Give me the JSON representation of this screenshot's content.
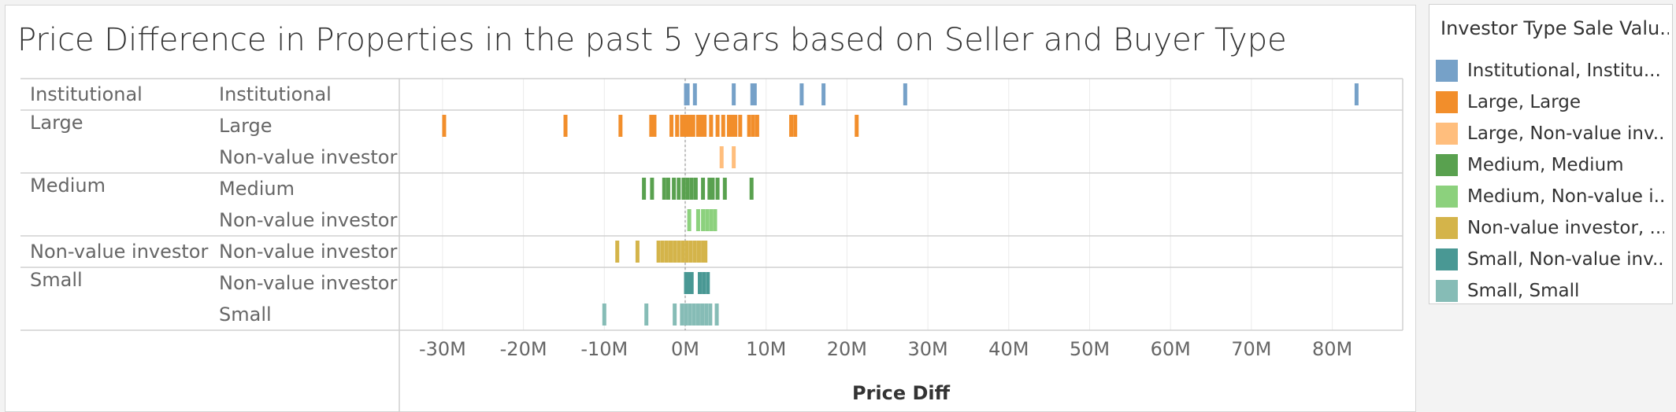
{
  "title": "Price Difference in Properties in the past 5 years based on Seller and Buyer Type",
  "legend": {
    "title": "Investor Type Sale Valu...",
    "items": [
      {
        "label": "Institutional, Institu...",
        "color": "#76a1c8"
      },
      {
        "label": "Large, Large",
        "color": "#f28e2b"
      },
      {
        "label": "Large, Non-value inv...",
        "color": "#ffbe7d"
      },
      {
        "label": "Medium, Medium",
        "color": "#59a14f"
      },
      {
        "label": "Medium, Non-value i...",
        "color": "#8cd17d"
      },
      {
        "label": "Non-value investor, ...",
        "color": "#d4b44a"
      },
      {
        "label": "Small, Non-value inv...",
        "color": "#499894"
      },
      {
        "label": "Small, Small",
        "color": "#86bcb6"
      }
    ]
  },
  "chart_data": {
    "type": "strip",
    "title": "Price Difference in Properties in the past 5 years based on Seller and Buyer Type",
    "xlabel": "Price Diff",
    "x_unit": "M",
    "xlim": [
      -33,
      88
    ],
    "x_ticks": [
      "-30M",
      "-20M",
      "-10M",
      "0M",
      "10M",
      "20M",
      "30M",
      "40M",
      "50M",
      "60M",
      "70M",
      "80M"
    ],
    "x_tick_values": [
      -30,
      -20,
      -10,
      0,
      10,
      20,
      30,
      40,
      50,
      60,
      70,
      80
    ],
    "grid": "vertical",
    "zero_line": true,
    "legend_position": "right",
    "groups": [
      {
        "seller": "Institutional",
        "buyers": [
          "Institutional"
        ]
      },
      {
        "seller": "Large",
        "buyers": [
          "Large",
          "Non-value investor"
        ]
      },
      {
        "seller": "Medium",
        "buyers": [
          "Medium",
          "Non-value investor"
        ]
      },
      {
        "seller": "Non-value investor",
        "buyers": [
          "Non-value investor"
        ]
      },
      {
        "seller": "Small",
        "buyers": [
          "Non-value investor",
          "Small"
        ]
      }
    ],
    "series": [
      {
        "name": "Institutional, Institutional",
        "seller": "Institutional",
        "buyer": "Institutional",
        "color": "#76a1c8",
        "values": [
          0.1,
          0.3,
          1.2,
          6.0,
          8.3,
          8.6,
          14.4,
          17.1,
          27.2,
          83.0
        ]
      },
      {
        "name": "Large, Large",
        "seller": "Large",
        "buyer": "Large",
        "color": "#f28e2b",
        "values": [
          -29.8,
          -14.8,
          -8.0,
          -4.2,
          -3.8,
          -1.7,
          -1.0,
          -0.4,
          -0.2,
          0.2,
          0.5,
          0.8,
          1.0,
          1.6,
          2.0,
          2.4,
          3.2,
          4.0,
          4.7,
          5.4,
          5.8,
          6.2,
          6.8,
          7.9,
          8.4,
          8.9,
          13.1,
          13.6,
          21.2
        ]
      },
      {
        "name": "Large, Non-value investor",
        "seller": "Large",
        "buyer": "Non-value investor",
        "color": "#ffbe7d",
        "values": [
          4.5,
          6.0
        ]
      },
      {
        "name": "Medium, Medium",
        "seller": "Medium",
        "buyer": "Medium",
        "color": "#59a14f",
        "values": [
          -5.1,
          -4.1,
          -2.6,
          -2.1,
          -1.4,
          -0.8,
          -0.2,
          0.3,
          0.8,
          1.3,
          2.2,
          3.0,
          3.4,
          4.0,
          4.9,
          8.2
        ]
      },
      {
        "name": "Medium, Non-value investor",
        "seller": "Medium",
        "buyer": "Non-value investor",
        "color": "#8cd17d",
        "values": [
          0.5,
          1.6,
          2.2,
          2.7,
          3.2,
          3.7
        ]
      },
      {
        "name": "Non-value investor, Non-value investor",
        "seller": "Non-value investor",
        "buyer": "Non-value investor",
        "color": "#d4b44a",
        "values": [
          -8.4,
          -5.9,
          -3.3,
          -2.8,
          -2.3,
          -1.8,
          -1.3,
          -0.8,
          -0.3,
          0.2,
          0.7,
          1.2,
          1.7,
          2.2,
          2.5
        ]
      },
      {
        "name": "Small, Non-value investor",
        "seller": "Small",
        "buyer": "Non-value investor",
        "color": "#499894",
        "values": [
          0.1,
          0.4,
          0.8,
          1.8,
          2.3,
          2.8
        ]
      },
      {
        "name": "Small, Small",
        "seller": "Small",
        "buyer": "Small",
        "color": "#86bcb6",
        "values": [
          -10.0,
          -4.8,
          -1.3,
          -0.4,
          0.1,
          0.6,
          1.1,
          1.6,
          2.1,
          2.6,
          3.1,
          3.9
        ]
      }
    ]
  }
}
